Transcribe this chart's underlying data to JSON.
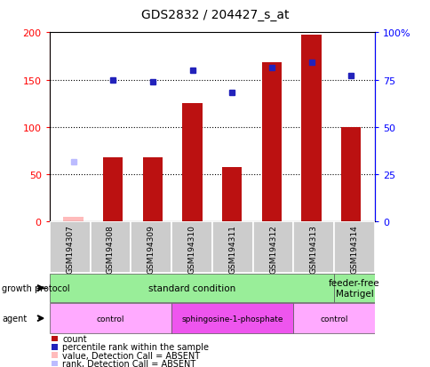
{
  "title": "GDS2832 / 204427_s_at",
  "samples": [
    "GSM194307",
    "GSM194308",
    "GSM194309",
    "GSM194310",
    "GSM194311",
    "GSM194312",
    "GSM194313",
    "GSM194314"
  ],
  "count_values": [
    null,
    68,
    68,
    125,
    58,
    168,
    197,
    100
  ],
  "count_absent": [
    5,
    null,
    null,
    null,
    null,
    null,
    null,
    null
  ],
  "rank_values": [
    null,
    150,
    148,
    160,
    136,
    163,
    168,
    154
  ],
  "rank_absent": [
    63,
    null,
    null,
    null,
    null,
    null,
    null,
    null
  ],
  "ylim_left": [
    0,
    200
  ],
  "ylim_right": [
    0,
    100
  ],
  "yticks_left": [
    0,
    50,
    100,
    150,
    200
  ],
  "yticks_right": [
    0,
    25,
    50,
    75,
    100
  ],
  "ytick_labels_left": [
    "0",
    "50",
    "100",
    "150",
    "200"
  ],
  "ytick_labels_right": [
    "0",
    "25",
    "50",
    "75",
    "100%"
  ],
  "bar_color": "#BB1111",
  "rank_color": "#2222BB",
  "absent_bar_color": "#FFBBBB",
  "absent_rank_color": "#BBBBFF",
  "sample_box_color": "#CCCCCC",
  "growth_protocol_color": "#99EE99",
  "agent_control_color": "#FFAAFF",
  "agent_s1p_color": "#EE55EE",
  "legend_items": [
    {
      "label": "count",
      "color": "#BB1111"
    },
    {
      "label": "percentile rank within the sample",
      "color": "#2222BB"
    },
    {
      "label": "value, Detection Call = ABSENT",
      "color": "#FFBBBB"
    },
    {
      "label": "rank, Detection Call = ABSENT",
      "color": "#BBBBFF"
    }
  ],
  "gp_groups": [
    {
      "label": "standard condition",
      "start": 0,
      "end": 6,
      "color": "#99EE99"
    },
    {
      "label": "feeder-free\nMatrigel",
      "start": 7,
      "end": 7,
      "color": "#99EE99"
    }
  ],
  "agent_groups": [
    {
      "label": "control",
      "start": 0,
      "end": 2,
      "color": "#FFAAFF"
    },
    {
      "label": "sphingosine-1-phosphate",
      "start": 3,
      "end": 5,
      "color": "#EE55EE"
    },
    {
      "label": "control",
      "start": 6,
      "end": 7,
      "color": "#FFAAFF"
    }
  ]
}
